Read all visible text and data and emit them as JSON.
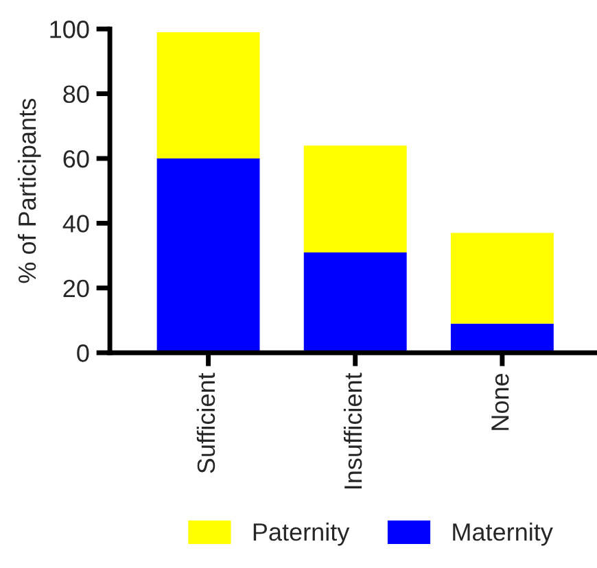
{
  "chart_data": {
    "type": "bar",
    "stacked": true,
    "ylabel": "% of Participants",
    "categories": [
      "Sufficient",
      "Insufficient",
      "None"
    ],
    "series": [
      {
        "name": "Maternity",
        "color": "#0000ff",
        "values": [
          60,
          31,
          9
        ]
      },
      {
        "name": "Paternity",
        "color": "#ffff00",
        "values": [
          39,
          33,
          28
        ]
      }
    ],
    "ylim": [
      0,
      100
    ],
    "yticks": [
      0,
      20,
      40,
      60,
      80,
      100
    ],
    "grid": false,
    "legend": "bottom"
  }
}
